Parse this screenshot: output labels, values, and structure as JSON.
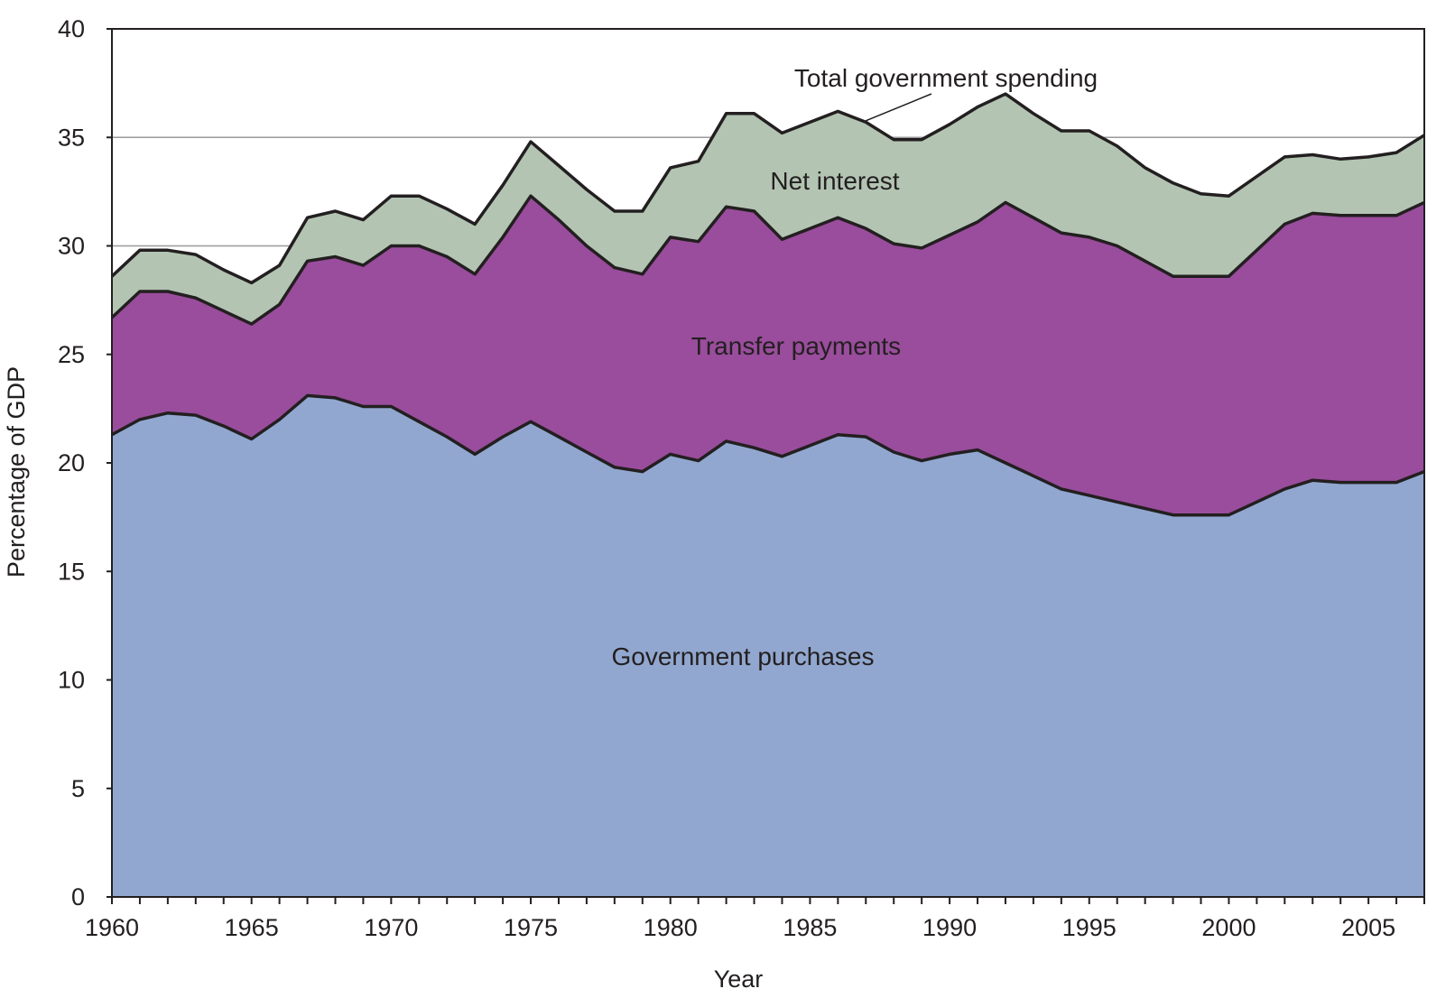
{
  "chart_data": {
    "type": "area",
    "stacked": true,
    "title": "",
    "xlabel": "Year",
    "ylabel": "Percentage of GDP",
    "xlim": [
      1960,
      2007
    ],
    "ylim": [
      0,
      40
    ],
    "x_ticks": [
      1960,
      1965,
      1970,
      1975,
      1980,
      1985,
      1990,
      1995,
      2000,
      2005
    ],
    "y_ticks": [
      0,
      5,
      10,
      15,
      20,
      25,
      30,
      35,
      40
    ],
    "gridlines_y": [
      30,
      35
    ],
    "x": [
      1960,
      1961,
      1962,
      1963,
      1964,
      1965,
      1966,
      1967,
      1968,
      1969,
      1970,
      1971,
      1972,
      1973,
      1974,
      1975,
      1976,
      1977,
      1978,
      1979,
      1980,
      1981,
      1982,
      1983,
      1984,
      1985,
      1986,
      1987,
      1988,
      1989,
      1990,
      1991,
      1992,
      1993,
      1994,
      1995,
      1996,
      1997,
      1998,
      1999,
      2000,
      2001,
      2002,
      2003,
      2004,
      2005,
      2006,
      2007
    ],
    "totals": {
      "government_purchases": [
        21.3,
        22.0,
        22.3,
        22.2,
        21.7,
        21.1,
        22.0,
        23.1,
        23.0,
        22.6,
        22.6,
        21.9,
        21.2,
        20.4,
        21.2,
        21.9,
        21.2,
        20.5,
        19.8,
        19.6,
        20.4,
        20.1,
        21.0,
        20.7,
        20.3,
        20.8,
        21.3,
        21.2,
        20.5,
        20.1,
        20.4,
        20.6,
        20.0,
        19.4,
        18.8,
        18.5,
        18.2,
        17.9,
        17.6,
        17.6,
        17.6,
        18.2,
        18.8,
        19.2,
        19.1,
        19.1,
        19.1,
        19.6
      ],
      "transfer_payments": [
        26.7,
        27.9,
        27.9,
        27.6,
        27.0,
        26.4,
        27.3,
        29.3,
        29.5,
        29.1,
        30.0,
        30.0,
        29.5,
        28.7,
        30.4,
        32.3,
        31.2,
        30.0,
        29.0,
        28.7,
        30.4,
        30.2,
        31.8,
        31.6,
        30.3,
        30.8,
        31.3,
        30.8,
        30.1,
        29.9,
        30.5,
        31.1,
        32.0,
        31.3,
        30.6,
        30.4,
        30.0,
        29.3,
        28.6,
        28.6,
        28.6,
        29.8,
        31.0,
        31.5,
        31.4,
        31.4,
        31.4,
        32.0
      ],
      "net_interest": [
        28.6,
        29.8,
        29.8,
        29.6,
        28.9,
        28.3,
        29.1,
        31.3,
        31.6,
        31.2,
        32.3,
        32.3,
        31.7,
        31.0,
        32.8,
        34.8,
        33.7,
        32.6,
        31.6,
        31.6,
        33.6,
        33.9,
        36.1,
        36.1,
        35.2,
        35.7,
        36.2,
        35.7,
        34.9,
        34.9,
        35.6,
        36.4,
        37.0,
        36.1,
        35.3,
        35.3,
        34.6,
        33.6,
        32.9,
        32.4,
        32.3,
        33.2,
        34.1,
        34.2,
        34.0,
        34.1,
        34.3,
        35.1
      ]
    },
    "series": [
      {
        "name": "Government purchases",
        "color": "#91a7cf"
      },
      {
        "name": "Transfer payments",
        "color": "#994d9c"
      },
      {
        "name": "Net interest",
        "color": "#b3c4b3"
      }
    ],
    "annotations": [
      {
        "text": "Total government spending",
        "points_to": [
          1987,
          35.6
        ]
      }
    ]
  }
}
